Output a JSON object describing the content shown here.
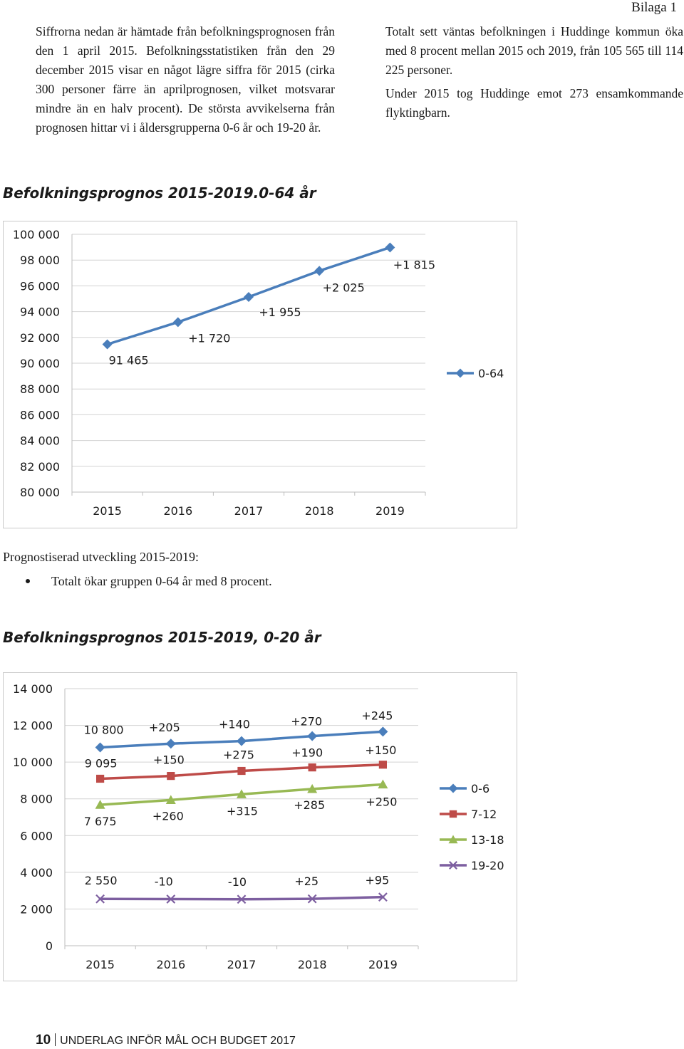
{
  "header": {
    "bilaga": "Bilaga 1"
  },
  "intro": {
    "left": "Siffrorna nedan är hämtade från befolkningsprognosen från den 1 april 2015. Befolkningsstatistiken från den 29 december 2015 visar en något lägre siffra för 2015 (cirka 300 personer färre än aprilprognosen, vilket motsvarar mindre än en halv procent). De största avvikelserna från prognosen hittar vi i åldersgrupperna 0-6 år och 19-20 år.",
    "right_1": "Totalt sett väntas befolkningen i Huddinge kommun öka med 8 procent mellan 2015 och 2019, från 105 565 till 114 225 personer.",
    "right_2": "Under 2015 tog Huddinge emot 273 ensamkommande flyktingbarn."
  },
  "section1": {
    "title": "Befolkningsprognos 2015-2019.0-64 år"
  },
  "section2": {
    "title": "Befolkningsprognos 2015-2019, 0-20 år"
  },
  "notes": {
    "title": "Prognostiserad utveckling 2015-2019:",
    "bullet": "Totalt ökar gruppen 0-64 år med 8 procent."
  },
  "footer": {
    "page": "10",
    "text": "UNDERLAG INFÖR MÅL OCH BUDGET 2017"
  },
  "chart_data": [
    {
      "type": "line",
      "title": "Befolkningsprognos 2015-2019.0-64 år",
      "categories": [
        "2015",
        "2016",
        "2017",
        "2018",
        "2019"
      ],
      "ylim": [
        80000,
        100000
      ],
      "yticks": [
        80000,
        82000,
        84000,
        86000,
        88000,
        90000,
        92000,
        94000,
        96000,
        98000,
        100000
      ],
      "ytick_labels": [
        "80 000",
        "82 000",
        "84 000",
        "86 000",
        "88 000",
        "90 000",
        "92 000",
        "94 000",
        "96 000",
        "98 000",
        "100 000"
      ],
      "legend_position": "right",
      "series": [
        {
          "name": "0-64",
          "color": "#4a7ebb",
          "marker": "diamond",
          "values": [
            91465,
            93185,
            95140,
            97165,
            98980
          ],
          "labels": [
            "91 465",
            "+1 720",
            "+1 955",
            "+2 025",
            "+1 815"
          ]
        }
      ]
    },
    {
      "type": "line",
      "title": "Befolkningsprognos 2015-2019, 0-20 år",
      "categories": [
        "2015",
        "2016",
        "2017",
        "2018",
        "2019"
      ],
      "ylim": [
        0,
        14000
      ],
      "yticks": [
        0,
        2000,
        4000,
        6000,
        8000,
        10000,
        12000,
        14000
      ],
      "ytick_labels": [
        "0",
        "2 000",
        "4 000",
        "6 000",
        "8 000",
        "10 000",
        "12 000",
        "14 000"
      ],
      "legend_position": "right",
      "series": [
        {
          "name": "0-6",
          "color": "#4a7ebb",
          "marker": "diamond",
          "values": [
            10800,
            11005,
            11145,
            11415,
            11660
          ],
          "labels": [
            "10 800",
            "+205",
            "+140",
            "+270",
            "+245"
          ]
        },
        {
          "name": "7-12",
          "color": "#be4b48",
          "marker": "square",
          "values": [
            9095,
            9245,
            9520,
            9710,
            9860
          ],
          "labels": [
            "9 095",
            "+150",
            "+275",
            "+190",
            "+150"
          ]
        },
        {
          "name": "13-18",
          "color": "#98b954",
          "marker": "triangle",
          "values": [
            7675,
            7935,
            8250,
            8535,
            8785
          ],
          "labels": [
            "7 675",
            "+260",
            "+315",
            "+285",
            "+250"
          ]
        },
        {
          "name": "19-20",
          "color": "#7d5fa0",
          "marker": "x",
          "values": [
            2550,
            2540,
            2530,
            2555,
            2650
          ],
          "labels": [
            "2 550",
            "-10",
            "-10",
            "+25",
            "+95"
          ]
        }
      ]
    }
  ]
}
